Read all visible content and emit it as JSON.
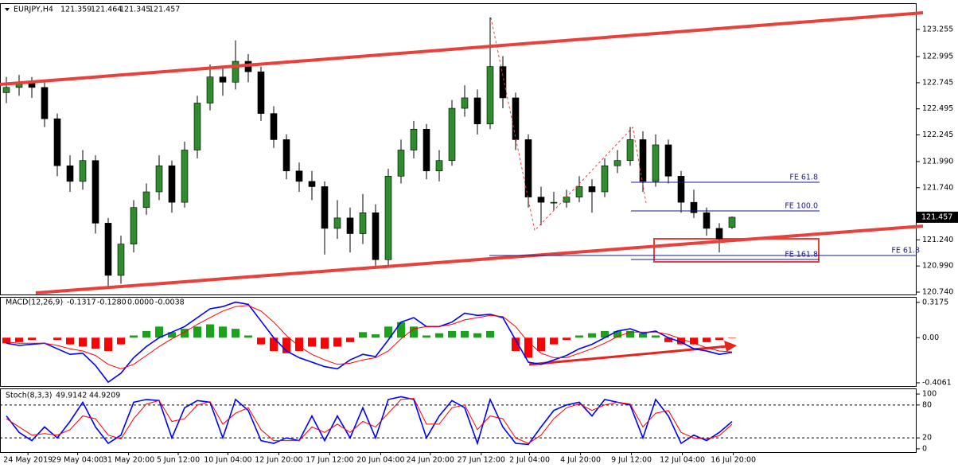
{
  "chart_data": [
    {
      "type": "candlestick",
      "title": "EURJPY,H4",
      "up_color": "#2e8b2e",
      "down_color": "#000000",
      "xlim": [
        -0.5,
        71.5
      ],
      "xticks": [
        {
          "value": 1.7,
          "label": "24 May 2019"
        },
        {
          "value": 5.6,
          "label": "29 May 04:00"
        },
        {
          "value": 9.6,
          "label": "31 May 20:00"
        },
        {
          "value": 13.5,
          "label": "5 Jun 12:00"
        },
        {
          "value": 17.4,
          "label": "10 Jun 04:00"
        },
        {
          "value": 21.4,
          "label": "12 Jun 20:00"
        },
        {
          "value": 25.4,
          "label": "17 Jun 12:00"
        },
        {
          "value": 29.4,
          "label": "20 Jun 04:00"
        },
        {
          "value": 33.3,
          "label": "24 Jun 20:00"
        },
        {
          "value": 37.3,
          "label": "27 Jun 12:00"
        },
        {
          "value": 41.1,
          "label": "2 Jul 04:00"
        },
        {
          "value": 45.1,
          "label": "4 Jul 20:00"
        },
        {
          "value": 49.1,
          "label": "9 Jul 12:00"
        },
        {
          "value": 53.1,
          "label": "12 Jul 04:00"
        },
        {
          "value": 57.1,
          "label": "16 Jul 20:00"
        }
      ],
      "ylim": [
        120.717,
        123.499
      ],
      "yticks": [
        123.255,
        122.995,
        122.745,
        122.495,
        122.245,
        {
          "value": 121.99,
          "label": "121.990"
        },
        {
          "value": 121.74,
          "label": "121.740"
        },
        {
          "value": 121.24,
          "label": "121.240"
        },
        {
          "value": 120.99,
          "label": "120.990"
        },
        {
          "value": 120.74,
          "label": "120.740"
        }
      ],
      "open": [
        122.65,
        122.7,
        122.75,
        122.7,
        122.4,
        121.95,
        121.8,
        122.0,
        121.4,
        120.9,
        121.2,
        121.55,
        121.7,
        121.95,
        121.6,
        122.1,
        122.55,
        122.8,
        122.75,
        122.95,
        122.85,
        122.45,
        122.2,
        121.9,
        121.8,
        121.75,
        121.35,
        121.45,
        121.3,
        121.5,
        121.05,
        121.85,
        122.1,
        122.3,
        121.9,
        122.0,
        122.5,
        122.6,
        122.35,
        122.9,
        122.6,
        122.2,
        121.65,
        121.6,
        121.6,
        121.65,
        121.75,
        121.7,
        121.95,
        122.0,
        122.2,
        121.8,
        122.15,
        121.85,
        121.6,
        121.5,
        121.35,
        121.359
      ],
      "high": [
        122.8,
        122.82,
        122.8,
        122.75,
        122.45,
        122.05,
        122.1,
        122.05,
        121.45,
        121.28,
        121.62,
        121.78,
        122.05,
        122.0,
        122.18,
        122.62,
        122.92,
        122.9,
        123.15,
        123.02,
        122.9,
        122.52,
        122.25,
        121.98,
        121.9,
        121.8,
        121.62,
        121.55,
        121.68,
        121.58,
        121.92,
        122.2,
        122.38,
        122.35,
        122.1,
        122.58,
        122.72,
        122.68,
        123.37,
        123.0,
        122.65,
        122.25,
        121.75,
        121.7,
        121.72,
        121.85,
        121.82,
        122.02,
        122.1,
        122.32,
        122.28,
        122.25,
        122.2,
        121.9,
        121.72,
        121.55,
        121.4,
        121.464
      ],
      "low": [
        122.55,
        122.62,
        122.6,
        122.32,
        121.85,
        121.7,
        121.72,
        121.3,
        120.77,
        120.82,
        121.12,
        121.48,
        121.62,
        121.5,
        121.55,
        122.02,
        122.48,
        122.62,
        122.68,
        122.75,
        122.38,
        122.12,
        121.82,
        121.7,
        121.62,
        121.1,
        121.25,
        121.12,
        121.2,
        120.98,
        121.0,
        121.78,
        122.02,
        121.82,
        121.8,
        121.95,
        122.42,
        122.25,
        122.3,
        122.5,
        122.1,
        121.55,
        121.38,
        121.52,
        121.55,
        121.6,
        121.5,
        121.65,
        121.88,
        121.95,
        121.7,
        121.75,
        121.78,
        121.5,
        121.45,
        121.28,
        121.12,
        121.345
      ],
      "close": [
        122.7,
        122.75,
        122.7,
        122.4,
        121.95,
        121.8,
        122.0,
        121.4,
        120.9,
        121.2,
        121.55,
        121.7,
        121.95,
        121.6,
        122.1,
        122.55,
        122.8,
        122.75,
        122.95,
        122.85,
        122.45,
        122.2,
        121.9,
        121.8,
        121.75,
        121.35,
        121.45,
        121.3,
        121.5,
        121.05,
        121.85,
        122.1,
        122.3,
        121.9,
        122.0,
        122.5,
        122.6,
        122.35,
        122.9,
        122.6,
        122.2,
        121.65,
        121.6,
        121.6,
        121.65,
        121.75,
        121.7,
        121.95,
        122.0,
        122.2,
        121.8,
        122.15,
        121.85,
        121.6,
        121.5,
        121.35,
        121.25,
        121.457
      ],
      "trend_lines": [
        {
          "color": "#e8413c",
          "x": [
            -0.5,
            72
          ],
          "y": [
            122.729,
            123.415
          ]
        },
        {
          "color": "#e8413c",
          "x": [
            2.31,
            72
          ],
          "y": [
            120.732,
            121.372
          ]
        }
      ],
      "zigzag": {
        "color": "#e8413c",
        "x": [
          38.06,
          41.5,
          49.2,
          50.25
        ],
        "y": [
          123.37,
          121.33,
          122.317,
          121.593
        ]
      },
      "levels": [
        {
          "label": "FE 61.8",
          "value": 121.792
        },
        {
          "label": "FE 100.0",
          "value": 121.517
        },
        {
          "label": "FE 161.8",
          "value": 121.052
        },
        {
          "label": "FE 61.8",
          "value": 121.09
        }
      ]
    },
    {
      "type": "macd",
      "title": "MACD(12,26,9)",
      "readout": [
        "-0.1317",
        "-0.1280",
        "0.0000",
        "-0.0038"
      ],
      "xlim": [
        -0.5,
        71.5
      ],
      "ylim": [
        -0.435,
        0.36
      ],
      "yticks": [
        0.3175,
        {
          "value": 0,
          "label": "0.00"
        },
        -0.4061
      ],
      "histogram": {
        "up_color": "#1aa31a",
        "down_color": "#ff0000",
        "values": [
          -0.05,
          -0.04,
          -0.02,
          0.0,
          -0.02,
          -0.06,
          -0.08,
          -0.1,
          -0.12,
          -0.06,
          0.02,
          0.06,
          0.1,
          0.05,
          0.08,
          0.1,
          0.12,
          0.1,
          0.08,
          0.02,
          -0.06,
          -0.12,
          -0.14,
          -0.12,
          -0.08,
          -0.1,
          -0.08,
          -0.04,
          0.05,
          0.03,
          0.1,
          0.14,
          0.1,
          0.02,
          0.04,
          0.06,
          0.06,
          0.04,
          0.06,
          0.0,
          -0.12,
          -0.18,
          -0.12,
          -0.06,
          -0.02,
          0.02,
          0.04,
          0.06,
          0.06,
          0.06,
          0.04,
          0.02,
          -0.04,
          -0.06,
          -0.06,
          -0.04,
          -0.02,
          -0.0038
        ]
      },
      "series": [
        {
          "color": "#0000ff",
          "values": [
            -0.05,
            -0.07,
            -0.06,
            -0.05,
            -0.1,
            -0.15,
            -0.14,
            -0.25,
            -0.4,
            -0.32,
            -0.18,
            -0.08,
            0.0,
            0.05,
            0.1,
            0.18,
            0.26,
            0.28,
            0.32,
            0.3,
            0.15,
            0.0,
            -0.12,
            -0.18,
            -0.22,
            -0.26,
            -0.28,
            -0.2,
            -0.15,
            -0.17,
            -0.02,
            0.14,
            0.18,
            0.1,
            0.1,
            0.14,
            0.22,
            0.2,
            0.21,
            0.18,
            -0.02,
            -0.22,
            -0.24,
            -0.2,
            -0.16,
            -0.1,
            -0.06,
            0.0,
            0.06,
            0.08,
            0.04,
            0.06,
            0.0,
            -0.04,
            -0.1,
            -0.12,
            -0.15,
            -0.1317
          ]
        },
        {
          "color": "#ff0000",
          "values": [
            -0.04,
            -0.05,
            -0.05,
            -0.05,
            -0.07,
            -0.1,
            -0.12,
            -0.16,
            -0.24,
            -0.28,
            -0.24,
            -0.16,
            -0.08,
            -0.01,
            0.05,
            0.12,
            0.18,
            0.24,
            0.28,
            0.29,
            0.24,
            0.14,
            0.02,
            -0.08,
            -0.15,
            -0.2,
            -0.24,
            -0.23,
            -0.2,
            -0.18,
            -0.12,
            -0.01,
            0.08,
            0.1,
            0.1,
            0.12,
            0.16,
            0.18,
            0.2,
            0.19,
            0.1,
            -0.04,
            -0.14,
            -0.18,
            -0.18,
            -0.14,
            -0.1,
            -0.05,
            0.01,
            0.05,
            0.05,
            0.05,
            0.03,
            -0.01,
            -0.05,
            -0.09,
            -0.12,
            -0.128
          ]
        }
      ]
    },
    {
      "type": "line",
      "title": "Stoch(8,3,3)",
      "xlim": [
        -0.5,
        71.5
      ],
      "ylim": [
        -5.9,
        108.8
      ],
      "yticks": [
        100,
        80,
        20,
        0
      ],
      "dashed_levels": [
        80,
        20
      ],
      "series": [
        {
          "color": "#0000ff",
          "values": [
            60,
            30,
            15,
            40,
            20,
            50,
            85,
            40,
            10,
            25,
            85,
            90,
            88,
            20,
            75,
            88,
            85,
            20,
            90,
            70,
            15,
            10,
            20,
            15,
            60,
            15,
            60,
            20,
            75,
            20,
            90,
            95,
            90,
            20,
            60,
            88,
            75,
            10,
            90,
            40,
            10,
            8,
            40,
            70,
            80,
            85,
            60,
            90,
            85,
            80,
            20,
            90,
            60,
            10,
            25,
            15,
            30,
            49.9142
          ]
        },
        {
          "color": "#ff0000",
          "values": [
            55,
            40,
            25,
            28,
            25,
            35,
            60,
            55,
            25,
            18,
            55,
            82,
            88,
            50,
            55,
            80,
            86,
            45,
            65,
            75,
            35,
            15,
            15,
            15,
            40,
            30,
            45,
            30,
            50,
            40,
            65,
            90,
            92,
            45,
            45,
            75,
            80,
            35,
            60,
            55,
            20,
            10,
            25,
            55,
            75,
            82,
            70,
            80,
            85,
            82,
            40,
            65,
            70,
            30,
            20,
            18,
            24,
            44.9209
          ]
        }
      ]
    }
  ]
}
